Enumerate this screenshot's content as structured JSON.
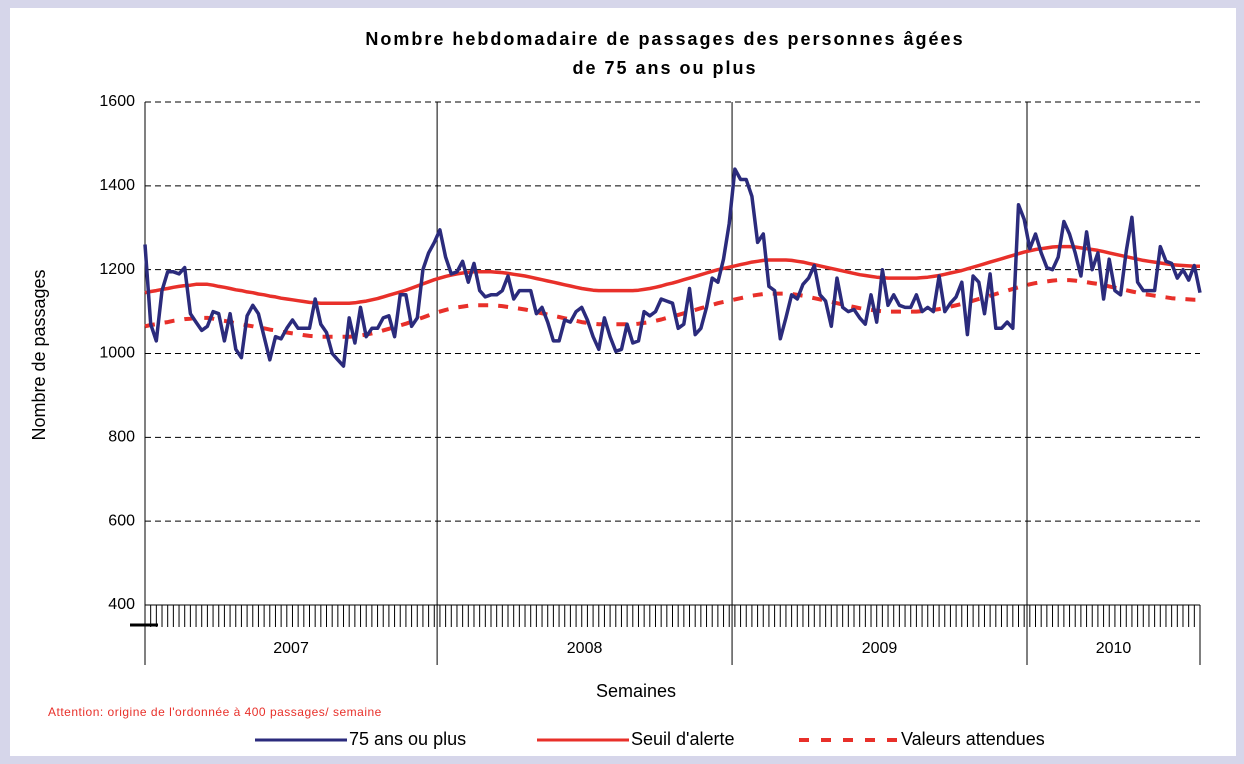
{
  "chart_data": {
    "type": "line",
    "title": [
      "Nombre hebdomadaire de passages des personnes âgées",
      "de 75 ans ou plus"
    ],
    "y_label": "Nombre de passages",
    "x_label": "Semaines",
    "annotation": "Attention: origine de l'ordonnée à 400 passages/ semaine",
    "groups": [
      {
        "label": "2007",
        "weeks": 52
      },
      {
        "label": "2008",
        "weeks": 52
      },
      {
        "label": "2009",
        "weeks": 52
      },
      {
        "label": "2010",
        "weeks": 31
      }
    ],
    "ylim": [
      400,
      1600
    ],
    "yticks": [
      400,
      600,
      800,
      1000,
      1200,
      1400,
      1600
    ],
    "grid": true,
    "legend": "bottom",
    "series": [
      {
        "name": "75 ans ou plus",
        "color": "#2b2b7c",
        "style": "solid",
        "values": [
          1260,
          1070,
          1030,
          1150,
          1195,
          1195,
          1190,
          1205,
          1095,
          1075,
          1055,
          1065,
          1100,
          1095,
          1030,
          1095,
          1010,
          990,
          1090,
          1115,
          1095,
          1040,
          985,
          1040,
          1035,
          1060,
          1080,
          1060,
          1060,
          1060,
          1130,
          1070,
          1050,
          1000,
          985,
          970,
          1085,
          1025,
          1110,
          1040,
          1060,
          1060,
          1085,
          1090,
          1040,
          1140,
          1140,
          1065,
          1085,
          1200,
          1240,
          1265,
          1295,
          1230,
          1190,
          1195,
          1220,
          1170,
          1215,
          1150,
          1135,
          1140,
          1140,
          1150,
          1185,
          1130,
          1150,
          1150,
          1150,
          1095,
          1110,
          1075,
          1030,
          1030,
          1080,
          1075,
          1100,
          1110,
          1080,
          1040,
          1010,
          1085,
          1040,
          1005,
          1010,
          1070,
          1025,
          1030,
          1100,
          1090,
          1100,
          1130,
          1125,
          1120,
          1060,
          1070,
          1155,
          1045,
          1060,
          1110,
          1180,
          1170,
          1225,
          1310,
          1440,
          1415,
          1415,
          1375,
          1265,
          1285,
          1160,
          1150,
          1035,
          1085,
          1140,
          1130,
          1165,
          1180,
          1210,
          1140,
          1125,
          1065,
          1180,
          1110,
          1100,
          1105,
          1085,
          1070,
          1140,
          1075,
          1200,
          1115,
          1140,
          1115,
          1110,
          1110,
          1140,
          1100,
          1110,
          1100,
          1185,
          1100,
          1120,
          1135,
          1170,
          1045,
          1185,
          1170,
          1095,
          1190,
          1060,
          1060,
          1075,
          1060,
          1355,
          1320,
          1250,
          1285,
          1240,
          1205,
          1200,
          1230,
          1315,
          1285,
          1240,
          1185,
          1290,
          1200,
          1240,
          1130,
          1225,
          1150,
          1140,
          1245,
          1325,
          1170,
          1150,
          1150,
          1150,
          1255,
          1220,
          1215,
          1180,
          1200,
          1175,
          1210,
          1145
        ]
      },
      {
        "name": "Seuil d'alerte",
        "color": "#e8302a",
        "style": "solid",
        "values": [
          1145,
          1148,
          1150,
          1153,
          1155,
          1158,
          1160,
          1162,
          1163,
          1165,
          1165,
          1165,
          1163,
          1160,
          1158,
          1155,
          1152,
          1150,
          1147,
          1145,
          1142,
          1140,
          1137,
          1135,
          1132,
          1130,
          1128,
          1126,
          1124,
          1122,
          1121,
          1120,
          1120,
          1120,
          1120,
          1120,
          1120,
          1121,
          1123,
          1125,
          1128,
          1131,
          1135,
          1139,
          1143,
          1147,
          1151,
          1156,
          1161,
          1166,
          1171,
          1176,
          1180,
          1184,
          1187,
          1190,
          1192,
          1194,
          1195,
          1195,
          1195,
          1195,
          1194,
          1193,
          1191,
          1189,
          1187,
          1185,
          1182,
          1179,
          1176,
          1173,
          1170,
          1167,
          1164,
          1161,
          1158,
          1155,
          1153,
          1151,
          1150,
          1150,
          1150,
          1150,
          1150,
          1150,
          1150,
          1151,
          1153,
          1155,
          1158,
          1161,
          1165,
          1168,
          1172,
          1176,
          1180,
          1184,
          1188,
          1192,
          1196,
          1200,
          1203,
          1206,
          1209,
          1212,
          1215,
          1218,
          1220,
          1222,
          1223,
          1223,
          1223,
          1223,
          1222,
          1220,
          1218,
          1215,
          1212,
          1209,
          1206,
          1203,
          1200,
          1197,
          1194,
          1191,
          1188,
          1186,
          1184,
          1182,
          1181,
          1180,
          1180,
          1180,
          1180,
          1180,
          1180,
          1181,
          1182,
          1184,
          1186,
          1189,
          1192,
          1195,
          1198,
          1202,
          1206,
          1210,
          1214,
          1218,
          1222,
          1226,
          1230,
          1234,
          1238,
          1242,
          1245,
          1248,
          1250,
          1252,
          1254,
          1255,
          1255,
          1255,
          1254,
          1252,
          1250,
          1248,
          1246,
          1243,
          1240,
          1237,
          1234,
          1231,
          1228,
          1225,
          1222,
          1220,
          1218,
          1216,
          1214,
          1212,
          1211,
          1210,
          1209,
          1208,
          1208
        ]
      },
      {
        "name": "Valeurs attendues",
        "color": "#e8302a",
        "style": "dashed",
        "values": [
          1065,
          1068,
          1070,
          1073,
          1075,
          1078,
          1080,
          1082,
          1083,
          1085,
          1085,
          1085,
          1083,
          1080,
          1078,
          1075,
          1072,
          1070,
          1067,
          1065,
          1062,
          1060,
          1057,
          1055,
          1052,
          1050,
          1048,
          1046,
          1044,
          1042,
          1041,
          1040,
          1040,
          1040,
          1040,
          1040,
          1040,
          1041,
          1043,
          1045,
          1048,
          1051,
          1055,
          1059,
          1063,
          1067,
          1071,
          1076,
          1081,
          1086,
          1091,
          1096,
          1100,
          1104,
          1107,
          1110,
          1112,
          1114,
          1115,
          1115,
          1115,
          1115,
          1114,
          1113,
          1111,
          1109,
          1107,
          1105,
          1102,
          1099,
          1096,
          1093,
          1090,
          1087,
          1084,
          1081,
          1078,
          1075,
          1073,
          1071,
          1070,
          1070,
          1070,
          1070,
          1070,
          1070,
          1070,
          1071,
          1073,
          1075,
          1078,
          1081,
          1085,
          1088,
          1092,
          1096,
          1100,
          1104,
          1108,
          1112,
          1116,
          1120,
          1123,
          1126,
          1129,
          1132,
          1135,
          1138,
          1140,
          1142,
          1143,
          1143,
          1143,
          1143,
          1142,
          1140,
          1138,
          1135,
          1132,
          1129,
          1126,
          1123,
          1120,
          1117,
          1114,
          1111,
          1108,
          1106,
          1104,
          1102,
          1101,
          1100,
          1100,
          1100,
          1100,
          1100,
          1100,
          1101,
          1102,
          1104,
          1106,
          1109,
          1112,
          1115,
          1118,
          1122,
          1126,
          1130,
          1134,
          1138,
          1142,
          1146,
          1150,
          1154,
          1158,
          1162,
          1165,
          1168,
          1170,
          1172,
          1174,
          1175,
          1175,
          1175,
          1174,
          1172,
          1170,
          1168,
          1166,
          1163,
          1160,
          1157,
          1154,
          1151,
          1148,
          1145,
          1142,
          1140,
          1138,
          1136,
          1134,
          1132,
          1131,
          1130,
          1129,
          1128,
          1128
        ]
      }
    ]
  }
}
